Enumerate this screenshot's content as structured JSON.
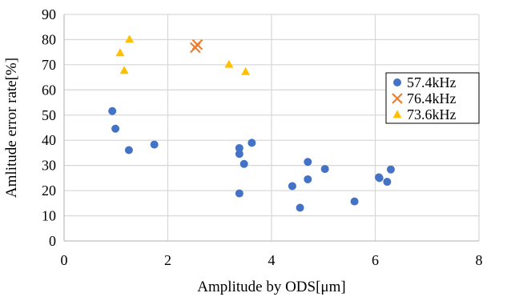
{
  "chart_data": {
    "type": "scatter",
    "title": "",
    "xlabel": "Amplitude by ODS[μm]",
    "ylabel": "Amlitude error rate[%]",
    "xlim": [
      0,
      8
    ],
    "ylim": [
      0,
      90
    ],
    "x_ticks": [
      0,
      2,
      4,
      6,
      8
    ],
    "y_ticks": [
      0,
      10,
      20,
      30,
      40,
      50,
      60,
      70,
      80,
      90
    ],
    "x_tick_labels": [
      "0",
      "2",
      "4",
      "6",
      "8"
    ],
    "y_tick_labels": [
      "0",
      "10",
      "20",
      "30",
      "40",
      "50",
      "60",
      "70",
      "80",
      "90"
    ],
    "grid": true,
    "legend_position": "right",
    "series": [
      {
        "name": "57.4kHz",
        "marker": "circle",
        "color": "#4472c4",
        "points": [
          [
            0.93,
            51.6
          ],
          [
            0.99,
            44.6
          ],
          [
            1.25,
            36.1
          ],
          [
            1.74,
            38.3
          ],
          [
            3.38,
            36.9
          ],
          [
            3.38,
            34.6
          ],
          [
            3.47,
            30.6
          ],
          [
            3.62,
            39.0
          ],
          [
            3.38,
            18.9
          ],
          [
            4.4,
            21.8
          ],
          [
            4.55,
            13.2
          ],
          [
            4.7,
            31.4
          ],
          [
            4.7,
            24.5
          ],
          [
            5.03,
            28.6
          ],
          [
            5.6,
            15.7
          ],
          [
            6.07,
            25.3
          ],
          [
            6.08,
            25.0
          ],
          [
            6.23,
            23.5
          ],
          [
            6.3,
            28.4
          ]
        ]
      },
      {
        "name": "76.4kHz",
        "marker": "x",
        "color": "#ed7d31",
        "points": [
          [
            2.53,
            76.8
          ],
          [
            2.57,
            78.0
          ]
        ]
      },
      {
        "name": "73.6kHz",
        "marker": "triangle",
        "color": "#ffc000",
        "points": [
          [
            1.08,
            74.8
          ],
          [
            1.16,
            67.8
          ],
          [
            1.26,
            80.2
          ],
          [
            3.18,
            70.2
          ],
          [
            3.5,
            67.3
          ]
        ]
      }
    ]
  }
}
